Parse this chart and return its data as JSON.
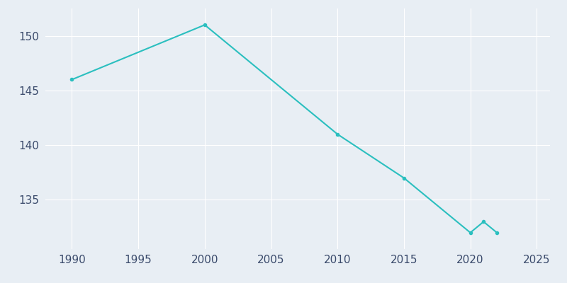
{
  "years": [
    1990,
    2000,
    2010,
    2015,
    2020,
    2021,
    2022
  ],
  "population": [
    146,
    151,
    141,
    137,
    132,
    133,
    132
  ],
  "line_color": "#2bbfbf",
  "bg_color": "#e8eef4",
  "grid_color": "#ffffff",
  "xlim": [
    1988,
    2026
  ],
  "ylim": [
    130.5,
    152.5
  ],
  "xticks": [
    1990,
    1995,
    2000,
    2005,
    2010,
    2015,
    2020,
    2025
  ],
  "yticks": [
    135,
    140,
    145,
    150
  ],
  "line_width": 1.5,
  "marker_size": 3,
  "tick_label_color": "#3a4a6b",
  "tick_fontsize": 11
}
